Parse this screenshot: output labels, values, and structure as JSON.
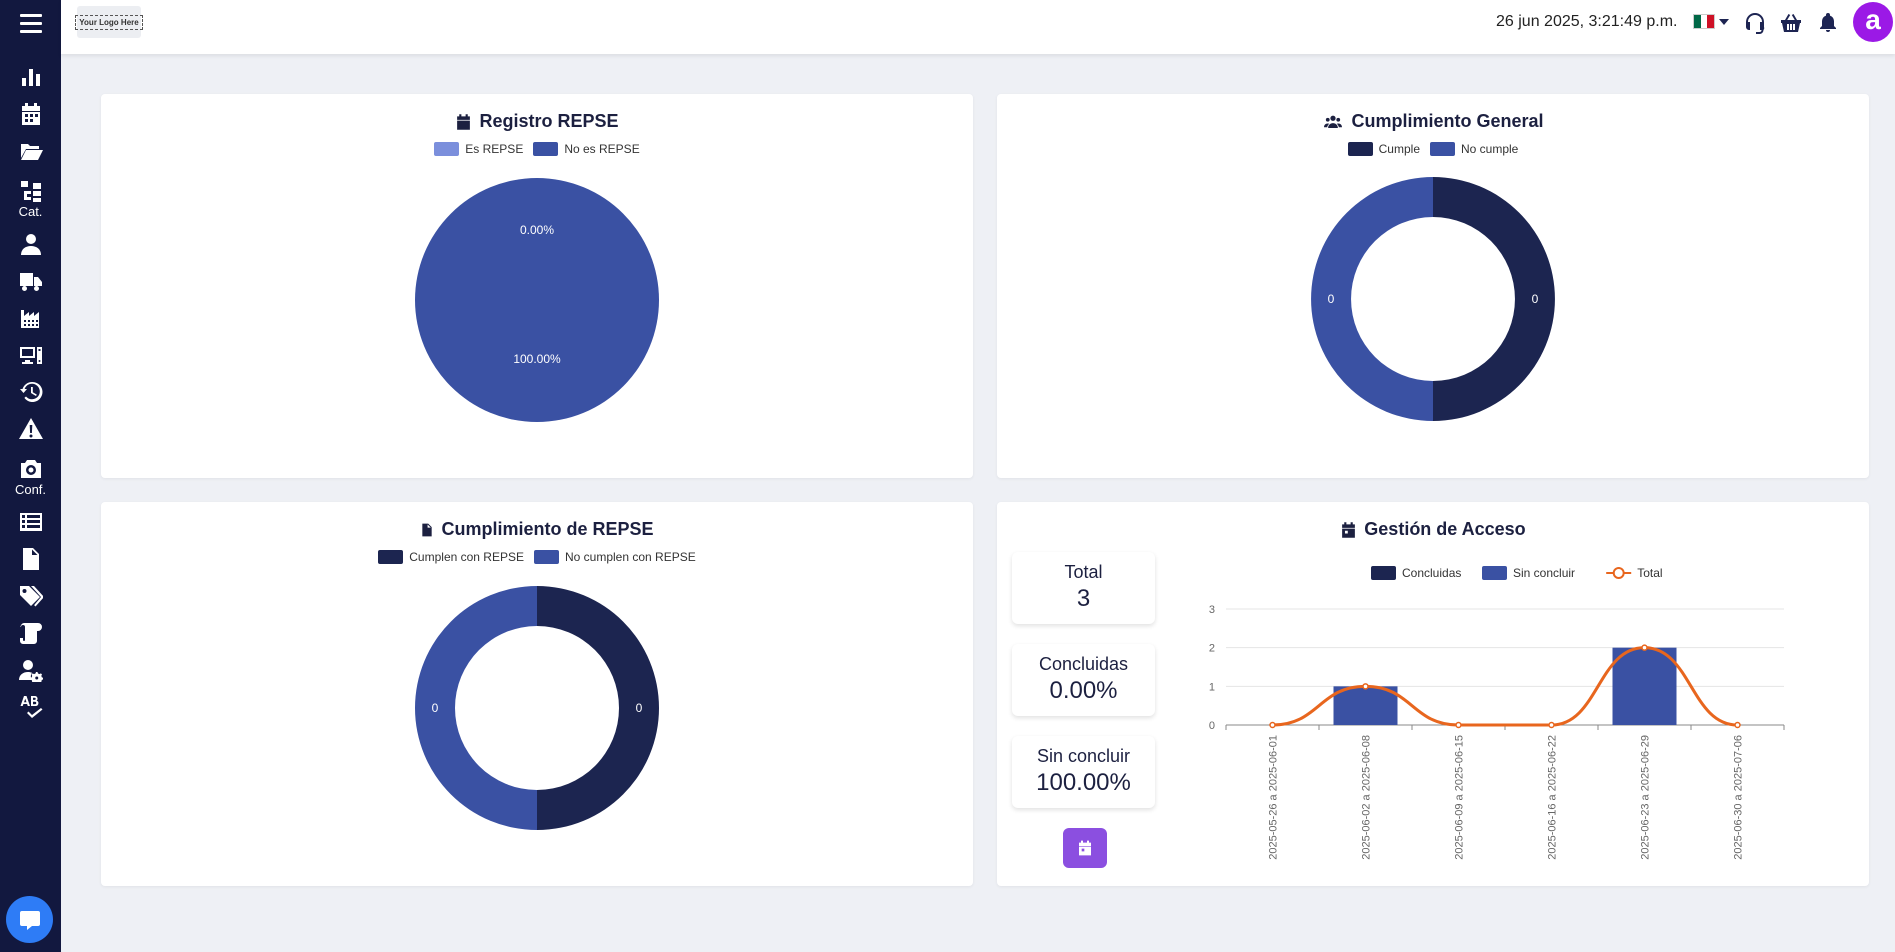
{
  "topbar": {
    "logo_text": "Your Logo Here",
    "datetime": "26 jun 2025, 3:21:49 p.m.",
    "language_flag": "mexico-flag",
    "avatar_letter": "a",
    "avatar_color": "#9b19e6"
  },
  "sidebar": {
    "background": "#12183f",
    "items": [
      {
        "icon": "bar-chart-icon",
        "label": ""
      },
      {
        "icon": "calendar-icon",
        "label": ""
      },
      {
        "icon": "folder-open-icon",
        "label": ""
      },
      {
        "icon": "catalog-icon",
        "label": "Cat."
      },
      {
        "icon": "user-icon",
        "label": ""
      },
      {
        "icon": "truck-icon",
        "label": ""
      },
      {
        "icon": "industry-icon",
        "label": ""
      },
      {
        "icon": "devices-icon",
        "label": ""
      },
      {
        "icon": "history-icon",
        "label": ""
      },
      {
        "icon": "warning-icon",
        "label": ""
      },
      {
        "icon": "camera-icon",
        "label": "Conf."
      },
      {
        "icon": "list-icon",
        "label": ""
      },
      {
        "icon": "file-icon",
        "label": ""
      },
      {
        "icon": "tags-icon",
        "label": ""
      },
      {
        "icon": "scroll-icon",
        "label": ""
      },
      {
        "icon": "user-gear-icon",
        "label": ""
      },
      {
        "icon": "spell-check-icon",
        "label": ""
      }
    ],
    "chat_icon": "chat-icon"
  },
  "cards": {
    "registro": {
      "title": "Registro REPSE",
      "legend": [
        {
          "label": "Es REPSE",
          "color": "#7b8fdc"
        },
        {
          "label": "No es REPSE",
          "color": "#3a51a3"
        }
      ]
    },
    "cumplimiento_general": {
      "title": "Cumplimiento General",
      "legend": [
        {
          "label": "Cumple",
          "color": "#1c2550"
        },
        {
          "label": "No cumple",
          "color": "#3a51a3"
        }
      ]
    },
    "cumplimiento_repse": {
      "title": "Cumplimiento de REPSE",
      "legend": [
        {
          "label": "Cumplen con REPSE",
          "color": "#1c2550"
        },
        {
          "label": "No cumplen con REPSE",
          "color": "#3a51a3"
        }
      ]
    },
    "gestion": {
      "title": "Gestión de Acceso",
      "stats": [
        {
          "label": "Total",
          "value": "3"
        },
        {
          "label": "Concluidas",
          "value": "0.00%"
        },
        {
          "label": "Sin concluir",
          "value": "100.00%"
        }
      ],
      "legend": [
        {
          "label": "Concluidas",
          "color": "#1c2550"
        },
        {
          "label": "Sin concluir",
          "color": "#3a51a3"
        },
        {
          "label": "Total",
          "color": "#e8661e"
        }
      ]
    }
  },
  "chart_data": [
    {
      "type": "pie",
      "title": "Registro REPSE",
      "categories": [
        "Es REPSE",
        "No es REPSE"
      ],
      "values": [
        0,
        100
      ],
      "data_labels": [
        "0.00%",
        "100.00%"
      ],
      "colors": [
        "#7b8fdc",
        "#3a51a3"
      ]
    },
    {
      "type": "pie",
      "title": "Cumplimiento General",
      "donut": true,
      "categories": [
        "Cumple",
        "No cumple"
      ],
      "values": [
        0,
        0
      ],
      "data_labels": [
        "0",
        "0"
      ],
      "colors": [
        "#1c2550",
        "#3a51a3"
      ]
    },
    {
      "type": "pie",
      "title": "Cumplimiento de REPSE",
      "donut": true,
      "categories": [
        "Cumplen con REPSE",
        "No cumplen con REPSE"
      ],
      "values": [
        0,
        0
      ],
      "data_labels": [
        "0",
        "0"
      ],
      "colors": [
        "#1c2550",
        "#3a51a3"
      ]
    },
    {
      "type": "bar",
      "title": "Gestión de Acceso",
      "categories": [
        "2025-05-26 a 2025-06-01",
        "2025-06-02 a 2025-06-08",
        "2025-06-09 a 2025-06-15",
        "2025-06-16 a 2025-06-22",
        "2025-06-23 a 2025-06-29",
        "2025-06-30 a 2025-07-06"
      ],
      "series": [
        {
          "name": "Concluidas",
          "type": "bar",
          "values": [
            0,
            0,
            0,
            0,
            0,
            0
          ],
          "color": "#1c2550"
        },
        {
          "name": "Sin concluir",
          "type": "bar",
          "values": [
            0,
            1,
            0,
            0,
            2,
            0
          ],
          "color": "#3a51a3"
        },
        {
          "name": "Total",
          "type": "line",
          "values": [
            0,
            1,
            0,
            0,
            2,
            0
          ],
          "color": "#e8661e"
        }
      ],
      "ylim": [
        0,
        3
      ],
      "yticks": [
        0,
        1,
        2,
        3
      ],
      "grid": true,
      "legend_position": "top"
    }
  ]
}
